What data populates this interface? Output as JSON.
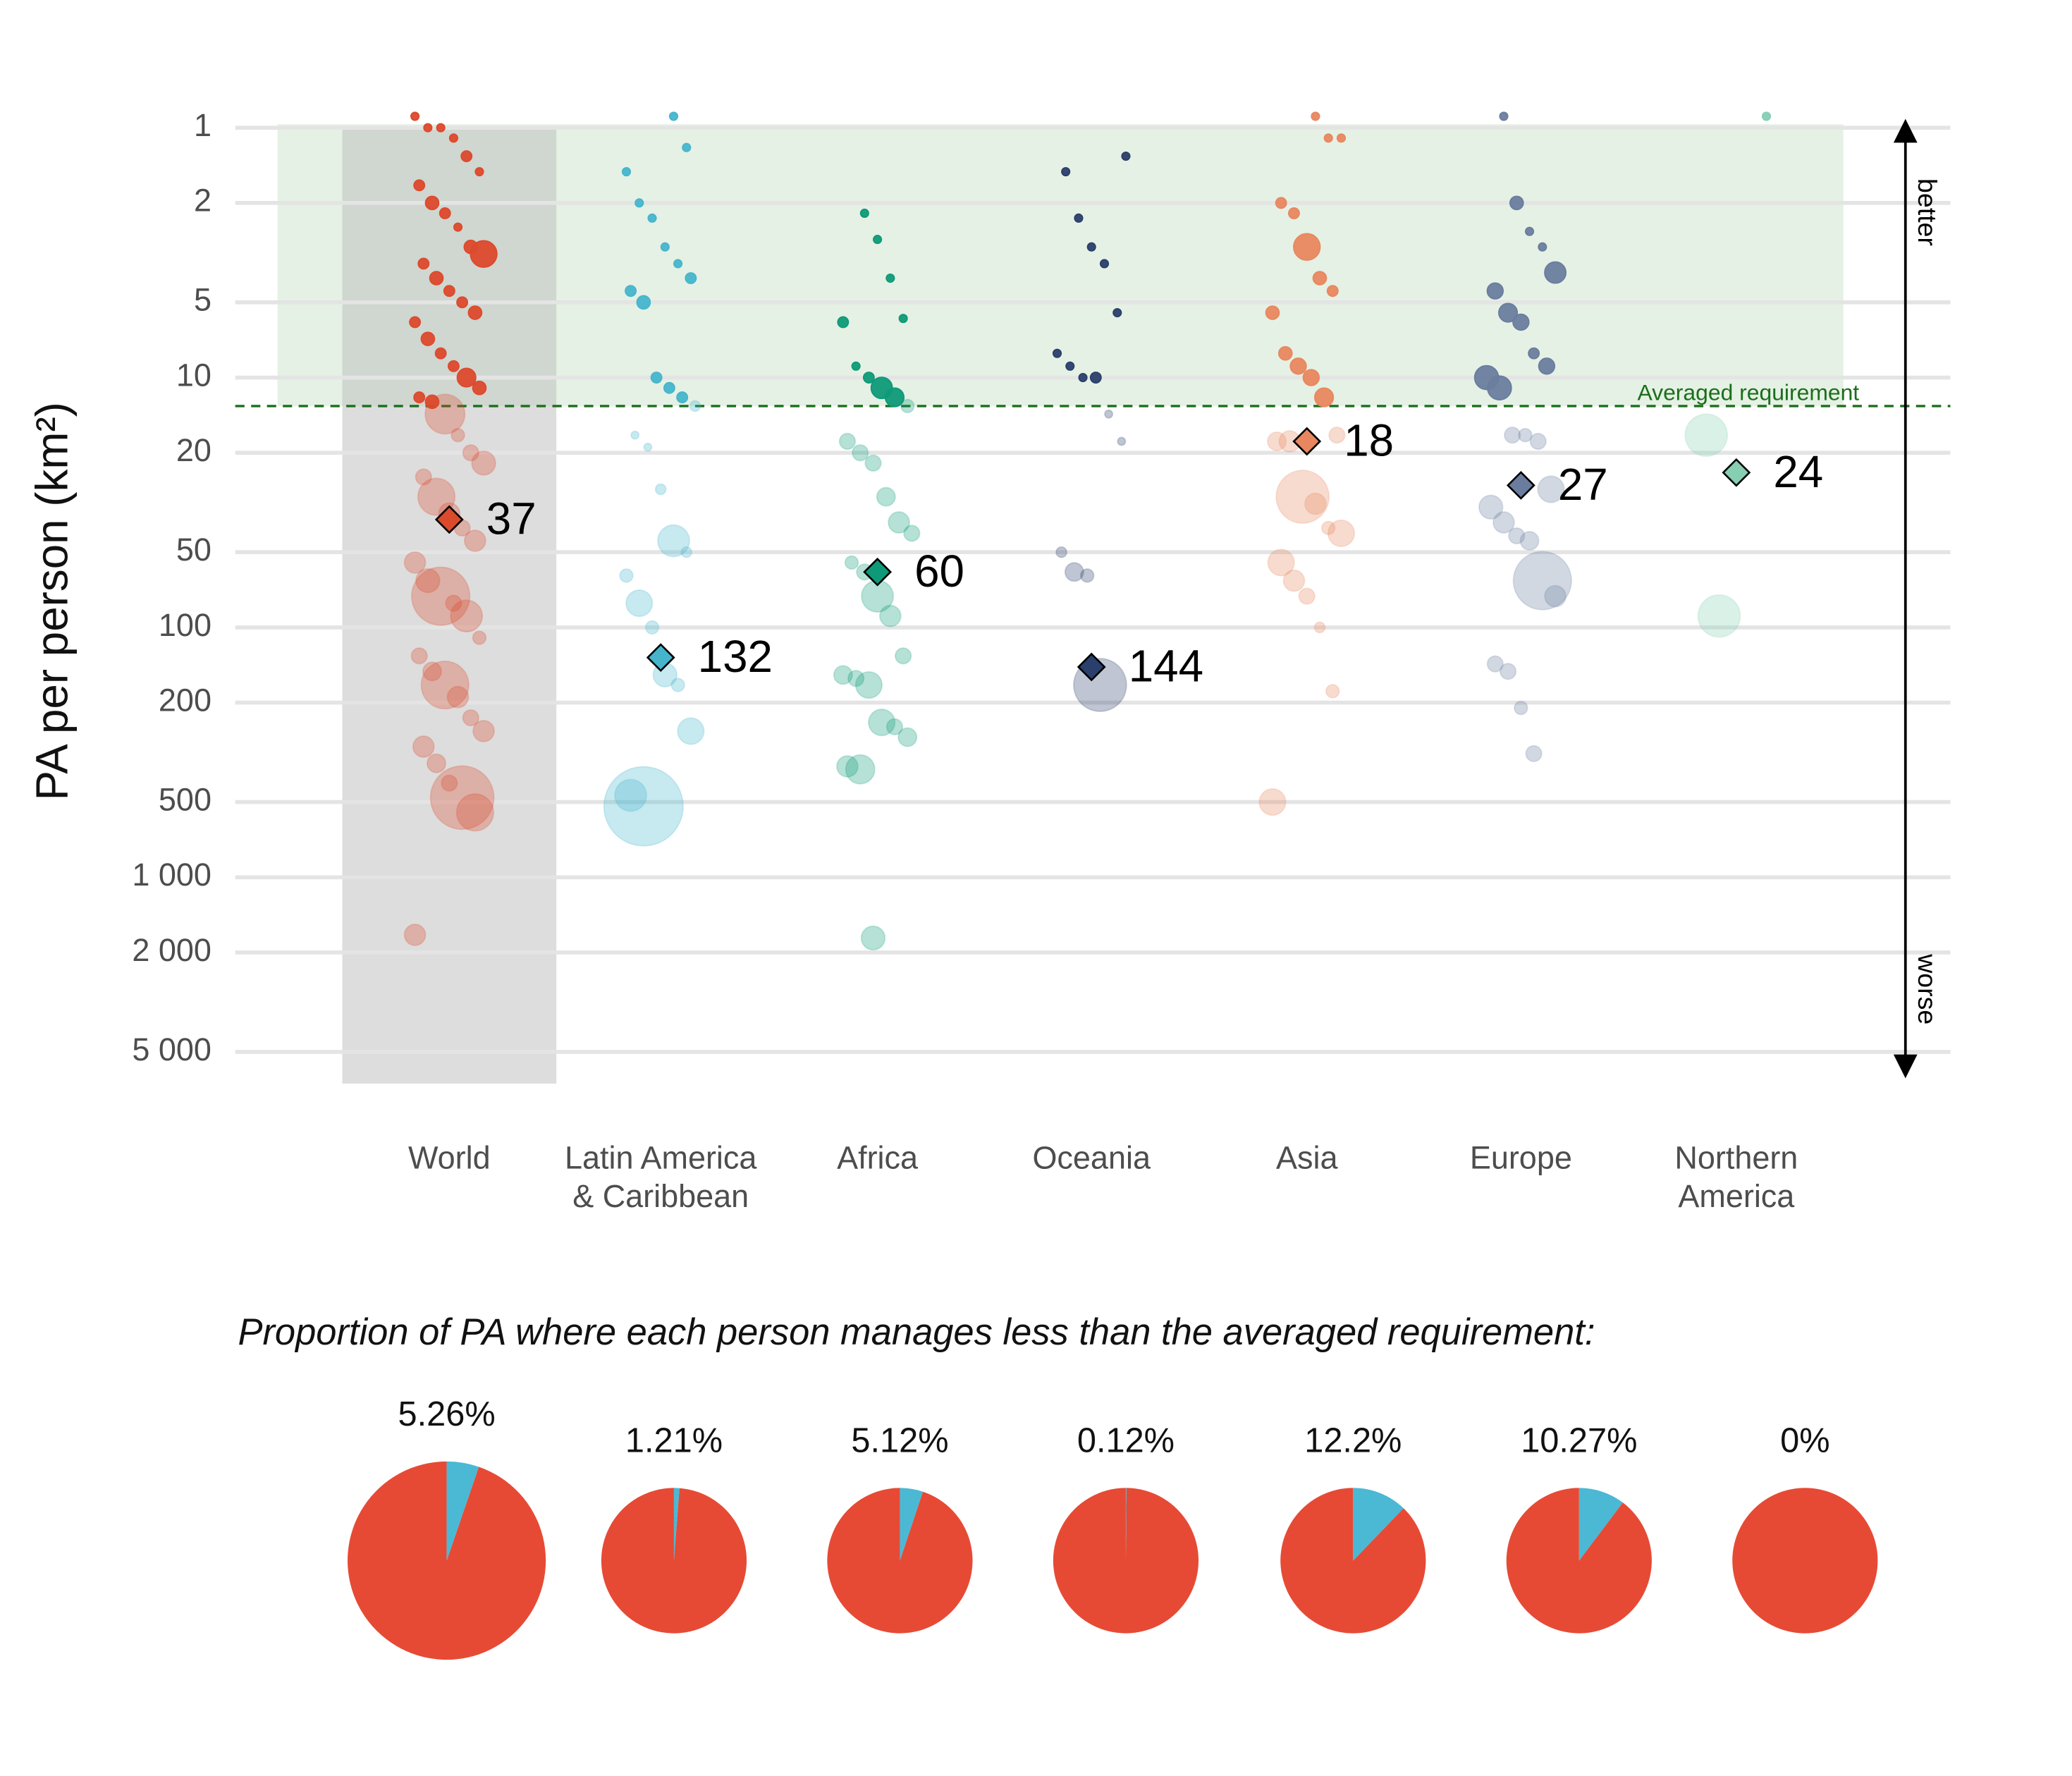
{
  "chart_data": [
    {
      "type": "strip",
      "y_label": "PA per person (km²)",
      "log_scale": true,
      "y_reversed": true,
      "grid": true,
      "ylim": [
        0.9,
        6000
      ],
      "yticks": [
        1,
        2,
        5,
        10,
        20,
        50,
        100,
        200,
        500,
        {
          "value": 1000,
          "label": "1 000"
        },
        {
          "value": 2000,
          "label": "2 000"
        },
        {
          "value": 5000,
          "label": "5 000"
        }
      ],
      "requirement": 13,
      "requirement_label": "Averaged requirement",
      "better_label": "better",
      "worse_label": "worse",
      "categories": [
        "World",
        "Latin America & Caribbean",
        "Africa",
        "Oceania",
        "Asia",
        "Europe",
        "Northern America"
      ],
      "colors": [
        "#dc4a2c",
        "#46b5cc",
        "#0e9a78",
        "#2a3f6b",
        "#e8875f",
        "#6a7d9e",
        "#86cfb3"
      ],
      "medians": [
        37,
        132,
        60,
        144,
        18,
        27,
        24
      ],
      "points": [
        [
          0.9,
          1,
          1,
          1.1,
          1.3,
          1.5,
          1.7,
          2,
          2.2,
          2.5,
          3,
          3.2,
          3.5,
          4,
          4.5,
          5,
          5.5,
          6,
          7,
          8,
          9,
          10,
          11,
          12,
          12.5,
          14,
          17,
          20,
          22,
          25,
          30,
          35,
          40,
          45,
          55,
          65,
          75,
          80,
          90,
          110,
          130,
          150,
          170,
          190,
          230,
          260,
          300,
          350,
          420,
          480,
          550,
          1700
        ],
        [
          0.9,
          1.2,
          1.5,
          2,
          2.3,
          3,
          3.5,
          4,
          4.5,
          5,
          10,
          11,
          12,
          13,
          17,
          19,
          28,
          45,
          50,
          62,
          80,
          100,
          155,
          170,
          260,
          470,
          520
        ],
        [
          2.2,
          2.8,
          4,
          5.8,
          6,
          9,
          10,
          11,
          12,
          13,
          18,
          20,
          22,
          30,
          38,
          42,
          55,
          60,
          75,
          90,
          130,
          155,
          160,
          170,
          240,
          250,
          275,
          360,
          370,
          1750
        ],
        [
          1.3,
          1.5,
          2.3,
          3,
          3.5,
          5.5,
          8,
          9,
          10,
          10,
          14,
          18,
          50,
          60,
          62,
          170
        ],
        [
          0.9,
          1.1,
          1.1,
          2,
          2.2,
          3,
          4,
          4.5,
          5.5,
          8,
          9,
          10,
          12,
          17,
          18,
          18,
          30,
          32,
          40,
          42,
          55,
          65,
          75,
          100,
          180,
          500
        ],
        [
          0.9,
          2,
          2.6,
          3,
          3.8,
          4.5,
          5.5,
          6,
          8,
          9,
          10,
          11,
          17,
          17,
          18,
          28,
          33,
          38,
          43,
          45,
          65,
          75,
          140,
          150,
          210,
          320
        ],
        [
          0.9,
          17,
          90
        ]
      ],
      "sizes": [
        [
          3,
          3,
          3,
          3,
          4,
          3,
          4,
          5,
          4,
          3,
          5,
          10,
          4,
          5,
          4,
          4,
          5,
          4,
          5,
          4,
          4,
          7,
          5,
          4,
          5,
          15,
          5,
          6,
          9,
          6,
          14,
          8,
          6,
          8,
          8,
          9,
          22,
          6,
          12,
          5,
          6,
          7,
          18,
          8,
          6,
          8,
          8,
          7,
          6,
          24,
          14,
          8
        ],
        [
          3,
          3,
          3,
          3,
          3,
          3,
          3,
          4,
          4,
          5,
          4,
          4,
          4,
          4,
          3,
          3,
          4,
          12,
          4,
          5,
          10,
          5,
          9,
          5,
          10,
          12,
          30
        ],
        [
          3,
          3,
          3,
          3,
          4,
          3,
          4,
          8,
          7,
          5,
          6,
          6,
          6,
          7,
          8,
          6,
          5,
          6,
          12,
          8,
          6,
          7,
          6,
          10,
          10,
          6,
          7,
          8,
          11,
          9
        ],
        [
          3,
          3,
          3,
          3,
          3,
          3,
          3,
          3,
          3,
          4,
          3,
          3,
          4,
          7,
          5,
          20
        ],
        [
          3,
          3,
          3,
          4,
          4,
          10,
          5,
          4,
          5,
          5,
          6,
          6,
          7,
          6,
          7,
          8,
          20,
          8,
          5,
          10,
          10,
          8,
          6,
          4,
          5,
          10
        ],
        [
          3,
          5,
          3,
          3,
          8,
          6,
          7,
          6,
          4,
          6,
          9,
          9,
          6,
          5,
          6,
          10,
          9,
          8,
          6,
          7,
          22,
          8,
          6,
          6,
          5,
          6
        ],
        [
          3,
          16,
          16
        ]
      ]
    },
    {
      "type": "pie",
      "title": "Proportion of PA where each person manages less than the averaged requirement:",
      "colors": [
        "#4bb8d4",
        "#e64a35"
      ],
      "values": [
        5.26,
        1.21,
        5.12,
        0.12,
        12.2,
        10.27,
        0
      ],
      "value_labels": [
        "5.26%",
        "1.21%",
        "5.12%",
        "0.12%",
        "12.2%",
        "10.27%",
        "0%"
      ]
    }
  ]
}
